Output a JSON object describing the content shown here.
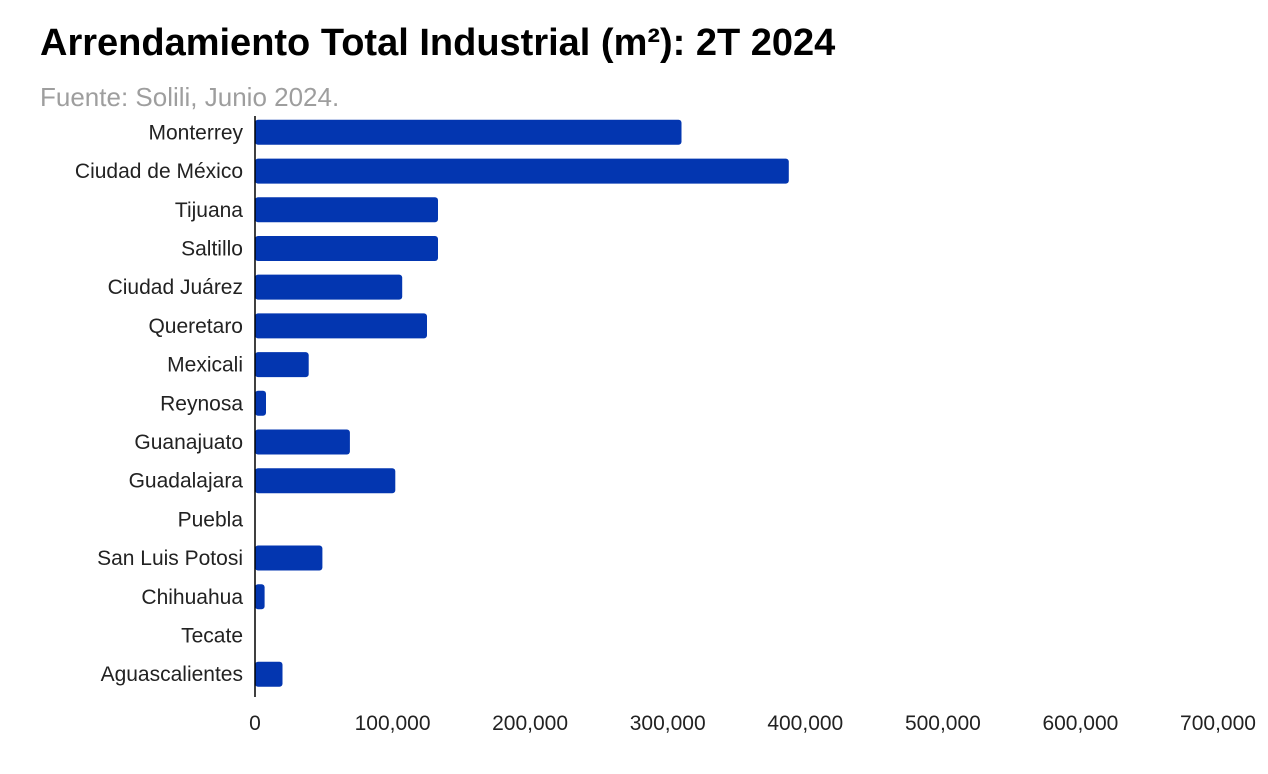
{
  "chart_data": {
    "type": "bar",
    "orientation": "horizontal",
    "title": "Arrendamiento Total Industrial (m²): 2T 2024",
    "subtitle": "Fuente: Solili, Junio 2024.",
    "categories": [
      "Monterrey",
      "Ciudad de México",
      "Tijuana",
      "Saltillo",
      "Ciudad Juárez",
      "Queretaro",
      "Mexicali",
      "Reynosa",
      "Guanajuato",
      "Guadalajara",
      "Puebla",
      "San Luis Potosi",
      "Chihuahua",
      "Tecate",
      "Aguascalientes"
    ],
    "values": [
      310000,
      388000,
      133000,
      133000,
      107000,
      125000,
      39000,
      8000,
      69000,
      102000,
      0,
      49000,
      7000,
      0,
      20000
    ],
    "xlim": [
      0,
      700000
    ],
    "xticks": [
      0,
      100000,
      200000,
      300000,
      400000,
      500000,
      600000,
      700000
    ],
    "xtick_labels": [
      "0",
      "100,000",
      "200,000",
      "300,000",
      "400,000",
      "500,000",
      "600,000",
      "700,000"
    ],
    "xlabel": "",
    "ylabel": "",
    "grid": false,
    "legend": "none",
    "bar_color": "#0336b0"
  }
}
